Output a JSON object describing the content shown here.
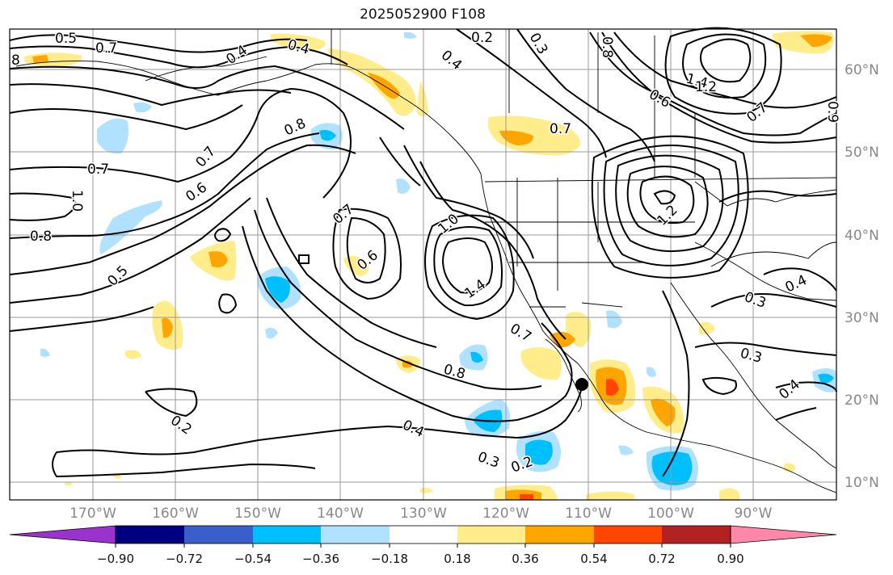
{
  "title": "2025052900 F108",
  "lat_labels": [
    "60°N",
    "50°N",
    "40°N",
    "30°N",
    "20°N",
    "10°N"
  ],
  "lon_labels": [
    "170°W",
    "160°W",
    "150°W",
    "140°W",
    "130°W",
    "120°W",
    "110°W",
    "100°W",
    "90°W"
  ],
  "colorbar": {
    "tick_labels": [
      "−0.90",
      "−0.72",
      "−0.54",
      "−0.36",
      "−0.18",
      "0.18",
      "0.36",
      "0.54",
      "0.72",
      "0.90"
    ],
    "colors": [
      "#9a32cd",
      "#000080",
      "#3a5fcd",
      "#00bfff",
      "#b0e2ff",
      "#ffffff",
      "#ffec8b",
      "#ffa500",
      "#ff4500",
      "#b22222",
      "#ff88aa"
    ]
  },
  "contour_labels": [
    "0.5",
    "0.7",
    "8",
    "0.4",
    "0.4",
    "0.2",
    "0.3",
    "0.4",
    "0.8",
    "1.4",
    "1.2",
    "0.6",
    "0.7",
    "0.9",
    "0.8",
    "0.7",
    "0.7",
    "0.6",
    "1.0",
    "0.8",
    "0.5",
    "0.7",
    "0.6",
    "1.0",
    "1.4",
    "1.2",
    "0.4",
    "0.7",
    "0.3",
    "0.3",
    "0.4",
    "0.8",
    "0.7",
    "0.4",
    "0.3",
    "0.2",
    "0.2"
  ]
}
